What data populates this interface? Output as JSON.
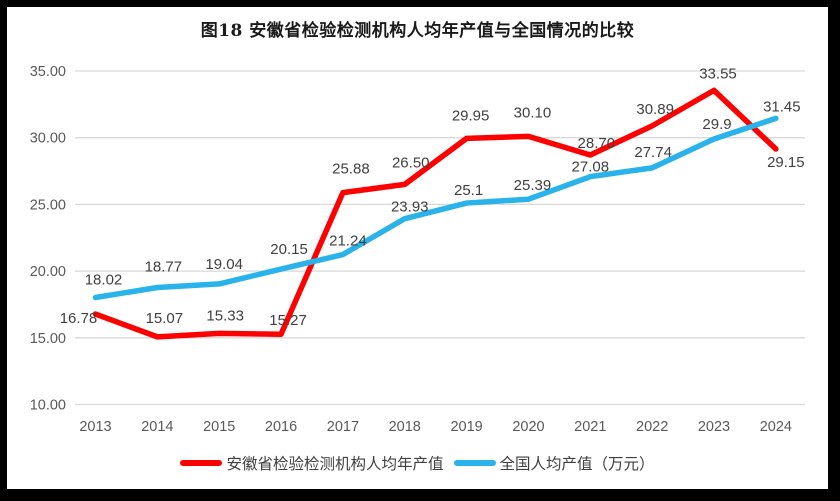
{
  "title": "图18 安徽省检验检测机构人均年产值与全国情况的比较",
  "colors": {
    "anhui_red": "#fe0000",
    "national_blue": "#29b3ea",
    "gridline": "#d9d9d9",
    "axis_text": "#595959",
    "data_label_text": "#404040",
    "legend_text": "#3f3f3f",
    "frame": "#000000",
    "title_text": "#1a1a1a"
  },
  "chart_data": {
    "type": "line",
    "title": "图18 安徽省检验检测机构人均年产值与全国情况的比较",
    "categories": [
      "2013",
      "2014",
      "2015",
      "2016",
      "2017",
      "2018",
      "2019",
      "2020",
      "2021",
      "2022",
      "2023",
      "2024"
    ],
    "series": [
      {
        "name": "安徽省检验检测机构人均年产值",
        "color": "#fe0000",
        "values": [
          16.78,
          15.07,
          15.33,
          15.27,
          25.88,
          26.5,
          29.95,
          30.1,
          28.7,
          30.89,
          33.55,
          29.15
        ],
        "labels": [
          "16.78",
          "15.07",
          "15.33",
          "15.27",
          "25.88",
          "26.50",
          "29.95",
          "30.10",
          "28.70",
          "30.89",
          "33.55",
          "29.15"
        ],
        "label_offsets": [
          [
            -17,
            9
          ],
          [
            7,
            -14
          ],
          [
            6,
            -13
          ],
          [
            7,
            -9
          ],
          [
            8,
            -19
          ],
          [
            6,
            -17
          ],
          [
            4,
            -18
          ],
          [
            4,
            -19
          ],
          [
            6,
            -7
          ],
          [
            3,
            -12
          ],
          [
            4,
            -12
          ],
          [
            10,
            18
          ]
        ]
      },
      {
        "name": "全国人均产值（万元）",
        "color": "#29b3ea",
        "values": [
          18.02,
          18.77,
          19.04,
          20.15,
          21.24,
          23.93,
          25.1,
          25.39,
          27.08,
          27.74,
          29.9,
          31.45
        ],
        "labels": [
          "18.02",
          "18.77",
          "19.04",
          "20.15",
          "21.24",
          "23.93",
          "25.1",
          "25.39",
          "27.08",
          "27.74",
          "29.9",
          "31.45"
        ],
        "label_offsets": [
          [
            8,
            -13
          ],
          [
            6,
            -16
          ],
          [
            5,
            -15
          ],
          [
            8,
            -15
          ],
          [
            5,
            -9
          ],
          [
            5,
            -7
          ],
          [
            2,
            -8
          ],
          [
            4,
            -9
          ],
          [
            0,
            -5
          ],
          [
            1,
            -11
          ],
          [
            3,
            -10
          ],
          [
            6,
            -7
          ]
        ]
      }
    ],
    "xlabel": "",
    "ylabel": "",
    "ylim": [
      10,
      35
    ],
    "y_ticks": [
      "35.00",
      "30.00",
      "25.00",
      "20.00",
      "15.00",
      "10.00"
    ],
    "y_tick_values": [
      35,
      30,
      25,
      20,
      15,
      10
    ],
    "grid": "horizontal-only",
    "legend_position": "bottom-center",
    "data_labels_shown": true
  },
  "legend": {
    "items": [
      {
        "label": "安徽省检验检测机构人均年产值",
        "color": "#fe0000"
      },
      {
        "label": "全国人均产值（万元）",
        "color": "#29b3ea"
      }
    ]
  }
}
